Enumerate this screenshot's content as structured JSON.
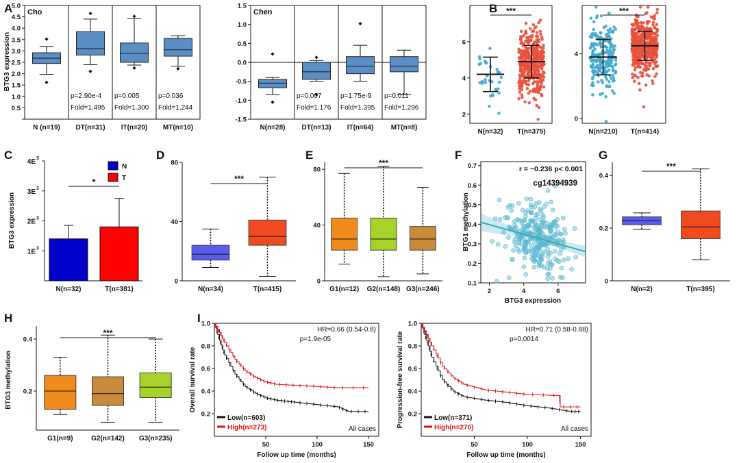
{
  "panel_labels": [
    "A",
    "B",
    "C",
    "D",
    "E",
    "F",
    "G",
    "H",
    "I"
  ],
  "sig3": "***",
  "sig1": "*",
  "chart_data": [
    {
      "id": "A1",
      "type": "box",
      "dataset": "Cho",
      "ylabel": "BTG3 expression",
      "ylim": [
        0,
        5
      ],
      "yticks": [
        0,
        0.5,
        1,
        1.5,
        2,
        2.5,
        3,
        3.5,
        4,
        4.5,
        5
      ],
      "ytick_labels": [
        "",
        "0.5",
        "1.0",
        "1.5",
        "2.0",
        "2.5",
        "3.0",
        "3.5",
        "4.0",
        "4.5",
        "5.0"
      ],
      "categories": [
        "N (n=19)",
        "DT(n=31)",
        "IT(n=20)",
        "MT(n=10)"
      ],
      "boxes": [
        {
          "min": 1.97,
          "q1": 2.45,
          "median": 2.68,
          "q3": 2.92,
          "max": 3.2,
          "outliers": [
            1.62,
            3.52
          ]
        },
        {
          "min": 2.4,
          "q1": 2.82,
          "median": 3.1,
          "q3": 3.85,
          "max": 4.4,
          "outliers": [
            2.1,
            4.65
          ]
        },
        {
          "min": 2.38,
          "q1": 2.5,
          "median": 2.9,
          "q3": 3.35,
          "max": 4.42,
          "outliers": [
            2.25,
            4.52
          ]
        },
        {
          "min": 2.33,
          "q1": 2.77,
          "median": 3.05,
          "q3": 3.55,
          "max": 3.67,
          "outliers": [
            2.22
          ]
        }
      ],
      "annotations": [
        {
          "p": "",
          "fold": ""
        },
        {
          "p": "p=2.90e-4",
          "fold": "Fold=1.495"
        },
        {
          "p": "p=0.005",
          "fold": "Fold=1.300"
        },
        {
          "p": "p=0.036",
          "fold": "Fold=1.244"
        }
      ]
    },
    {
      "id": "A2",
      "type": "box",
      "dataset": "Chen",
      "ylim": [
        -1.5,
        1.5
      ],
      "yticks": [
        -1.5,
        -1,
        -0.5,
        0,
        0.5,
        1,
        1.5
      ],
      "ytick_labels": [
        "-1.5",
        "-1.0",
        "-0.5",
        "0.0",
        "0.5",
        "1.0",
        "1.5"
      ],
      "categories": [
        "N(n=28)",
        "DT(n=13)",
        "IT(n=64)",
        "MT(n=8)"
      ],
      "boxes": [
        {
          "min": -0.85,
          "q1": -0.67,
          "median": -0.55,
          "q3": -0.45,
          "max": -0.4,
          "outliers": [
            -1.05,
            0.22
          ]
        },
        {
          "min": -0.5,
          "q1": -0.45,
          "median": -0.25,
          "q3": 0,
          "max": 0.05,
          "outliers": [
            -0.85,
            0.13
          ]
        },
        {
          "min": -0.5,
          "q1": -0.3,
          "median": -0.1,
          "q3": 0.15,
          "max": 0.45,
          "outliers": [
            1.02
          ]
        },
        {
          "min": -0.85,
          "q1": -0.25,
          "median": -0.1,
          "q3": 0.15,
          "max": 0.32,
          "outliers": []
        }
      ],
      "annotations": [
        {
          "p": "",
          "fold": ""
        },
        {
          "p": "p=0.007",
          "fold": "Fold=1.176"
        },
        {
          "p": "p=1.75e-9",
          "fold": "Fold=1.395"
        },
        {
          "p": "p=0.011",
          "fold": "Fold=1.296"
        }
      ]
    },
    {
      "id": "B1",
      "type": "scatter",
      "ylim": [
        1.5,
        8
      ],
      "yticks": [
        2,
        4,
        6
      ],
      "ytick_labels": [
        "2",
        "4",
        "6"
      ],
      "categories": [
        "N(n=32)",
        "T(n=375)"
      ],
      "groups": [
        {
          "color": "#3fa7cf",
          "mean": 4.2,
          "sd": 0.95,
          "n": 32,
          "seed": 11
        },
        {
          "color": "#e8503a",
          "mean": 4.9,
          "sd": 0.9,
          "n": 375,
          "seed": 23
        }
      ],
      "colors": [
        "#3fa7cf",
        "#e8503a"
      ]
    },
    {
      "id": "B2",
      "type": "scatter",
      "ylim": [
        -0.3,
        7
      ],
      "yticks": [
        0,
        4
      ],
      "ytick_labels": [
        "0",
        "4"
      ],
      "categories": [
        "N(n=210)",
        "T(n=414)"
      ],
      "groups": [
        {
          "color": "#3fa7cf",
          "mean": 3.8,
          "sd": 1.1,
          "n": 210,
          "seed": 5
        },
        {
          "color": "#e8503a",
          "mean": 4.5,
          "sd": 0.9,
          "n": 414,
          "seed": 7
        }
      ],
      "colors": [
        "#3fa7cf",
        "#e8503a"
      ]
    },
    {
      "id": "C",
      "type": "bar",
      "ylabel": "BTG3  expression",
      "ylim": [
        0,
        4000
      ],
      "yticks": [
        1000,
        2000,
        3000,
        4000
      ],
      "ytick_base": [
        "1E",
        "2E",
        "3E",
        "4E"
      ],
      "ytick_exp": "3",
      "categories": [
        "N(n=32)",
        "T(n=381)"
      ],
      "values": [
        1400,
        1800
      ],
      "errors": [
        450,
        950
      ],
      "colors": [
        "#0000cc",
        "#ff0000"
      ],
      "legend": [
        "N",
        "T"
      ]
    },
    {
      "id": "D",
      "type": "box",
      "ylim": [
        0,
        80
      ],
      "yticks": [
        0,
        40,
        80
      ],
      "ytick_labels": [
        "0",
        "40",
        "80"
      ],
      "categories": [
        "N(n=34)",
        "T(n=415)"
      ],
      "colors": [
        "#5b5bf0",
        "#f04a1e"
      ],
      "boxes": [
        {
          "min": 9,
          "q1": 14,
          "median": 18,
          "q3": 24,
          "max": 35
        },
        {
          "min": 3,
          "q1": 24,
          "median": 30,
          "q3": 41,
          "max": 70
        }
      ]
    },
    {
      "id": "E",
      "type": "box",
      "ylim": [
        0,
        85
      ],
      "yticks": [
        0,
        40,
        80
      ],
      "ytick_labels": [
        "0",
        "40",
        "80"
      ],
      "categories": [
        "G1(n=12)",
        "G2(n=148)",
        "G3(n=246)"
      ],
      "colors": [
        "#f08a1c",
        "#a6d22a",
        "#c98a3a"
      ],
      "boxes": [
        {
          "min": 12,
          "q1": 22,
          "median": 30,
          "q3": 45,
          "max": 77
        },
        {
          "min": 3,
          "q1": 22,
          "median": 30,
          "q3": 45,
          "max": 82
        },
        {
          "min": 5,
          "q1": 22,
          "median": 30,
          "q3": 39,
          "max": 67
        }
      ]
    },
    {
      "id": "F",
      "type": "scatter",
      "ylabel": "BTG1 methylation",
      "xlabel": "BTG3 expression",
      "xlim": [
        1.5,
        7.6
      ],
      "ylim": [
        0.1,
        0.72
      ],
      "xticks": [
        2,
        4,
        6
      ],
      "yticks": [
        0.1,
        0.2,
        0.3,
        0.4,
        0.5,
        0.6,
        0.7
      ],
      "xtick_labels": [
        "2",
        "4",
        "6"
      ],
      "ytick_labels": [
        "0.1",
        "0.2",
        "0.3",
        "0.4",
        "0.5",
        "0.6",
        "0.7"
      ],
      "stat": "r = −0.236  p< 0.001",
      "probe": "cg14394939",
      "fit_line": [
        [
          1.5,
          0.41
        ],
        [
          7.6,
          0.26
        ]
      ],
      "color": "#5ab8cf",
      "n": 300
    },
    {
      "id": "G",
      "type": "box",
      "ylim": [
        0,
        0.45
      ],
      "yticks": [
        0,
        0.2,
        0.4
      ],
      "ytick_labels": [
        "0",
        "0.2",
        "0.4"
      ],
      "categories": [
        "N(n=2)",
        "T(n=395)"
      ],
      "colors": [
        "#5b5bf0",
        "#f04a1e"
      ],
      "boxes": [
        {
          "min": 0.195,
          "q1": 0.213,
          "median": 0.228,
          "q3": 0.243,
          "max": 0.258
        },
        {
          "min": 0.08,
          "q1": 0.16,
          "median": 0.205,
          "q3": 0.265,
          "max": 0.425
        }
      ]
    },
    {
      "id": "H",
      "type": "box",
      "ylabel": "BTG3 methylation",
      "ylim": [
        0.05,
        0.45
      ],
      "yticks": [
        0.2,
        0.4
      ],
      "ytick_labels": [
        "0.2",
        "0.4"
      ],
      "categories": [
        "G1(n=9)",
        "G2(n=142)",
        "G3(n=235)"
      ],
      "colors": [
        "#f08a1c",
        "#c98a3a",
        "#a6d22a"
      ],
      "boxes": [
        {
          "min": 0.11,
          "q1": 0.13,
          "median": 0.2,
          "q3": 0.26,
          "max": 0.33
        },
        {
          "min": 0.08,
          "q1": 0.145,
          "median": 0.19,
          "q3": 0.255,
          "max": 0.415
        },
        {
          "min": 0.08,
          "q1": 0.175,
          "median": 0.215,
          "q3": 0.27,
          "max": 0.4
        }
      ]
    },
    {
      "id": "I1",
      "type": "line",
      "ylabel": "Overall survival rate",
      "xlabel": "Follow up time (months)",
      "xlim": [
        0,
        160
      ],
      "ylim": [
        0,
        1
      ],
      "xticks": [
        50,
        100,
        150
      ],
      "yticks": [
        0.2,
        0.4,
        0.6,
        0.8,
        1.0
      ],
      "xtick_labels": [
        "50",
        "100",
        "150"
      ],
      "ytick_labels": [
        "0.2",
        "0.4",
        "0.6",
        "0.8",
        "1.0"
      ],
      "hr": "HR=0.66 (0.54-0.8)",
      "p": "p=1.9e-05",
      "cases": "All cases",
      "legend": [
        "Low(n=603)",
        "High(n=273)"
      ],
      "series": [
        {
          "name": "Low(n=603)",
          "color": "#111",
          "x": [
            0,
            5,
            10,
            20,
            30,
            40,
            50,
            60,
            70,
            80,
            100,
            120,
            130,
            150
          ],
          "y": [
            1,
            0.85,
            0.72,
            0.55,
            0.44,
            0.38,
            0.34,
            0.32,
            0.31,
            0.3,
            0.28,
            0.26,
            0.22,
            0.22
          ]
        },
        {
          "name": "High(n=273)",
          "color": "#e01010",
          "x": [
            0,
            5,
            10,
            20,
            30,
            40,
            50,
            60,
            80,
            100,
            120,
            150
          ],
          "y": [
            1,
            0.92,
            0.83,
            0.68,
            0.58,
            0.52,
            0.48,
            0.46,
            0.45,
            0.44,
            0.43,
            0.43
          ]
        }
      ]
    },
    {
      "id": "I2",
      "type": "line",
      "ylabel": "Progression-free  survival rate",
      "xlabel": "Follow up time (months)",
      "xlim": [
        0,
        160
      ],
      "ylim": [
        0,
        1
      ],
      "xticks": [
        50,
        100,
        150
      ],
      "yticks": [
        0.2,
        0.4,
        0.6,
        0.8,
        1.0
      ],
      "xtick_labels": [
        "50",
        "100",
        "150"
      ],
      "ytick_labels": [
        "0.2",
        "0.4",
        "0.6",
        "0.8",
        "1.0"
      ],
      "hr": "HR=0.71 (0.58-0.88)",
      "p": "p=0.0014",
      "cases": "All cases",
      "legend": [
        "Low(n=371)",
        "High(n=270)"
      ],
      "series": [
        {
          "name": "Low(n=371)",
          "color": "#111",
          "x": [
            0,
            5,
            10,
            20,
            30,
            40,
            60,
            80,
            100,
            120,
            140,
            150
          ],
          "y": [
            1,
            0.85,
            0.7,
            0.5,
            0.4,
            0.35,
            0.32,
            0.3,
            0.27,
            0.25,
            0.22,
            0.22
          ]
        },
        {
          "name": "High(n=270)",
          "color": "#e01010",
          "x": [
            0,
            5,
            10,
            20,
            30,
            40,
            60,
            80,
            100,
            130,
            131,
            150
          ],
          "y": [
            1,
            0.9,
            0.8,
            0.62,
            0.52,
            0.46,
            0.41,
            0.39,
            0.37,
            0.36,
            0.26,
            0.26
          ]
        }
      ]
    }
  ]
}
